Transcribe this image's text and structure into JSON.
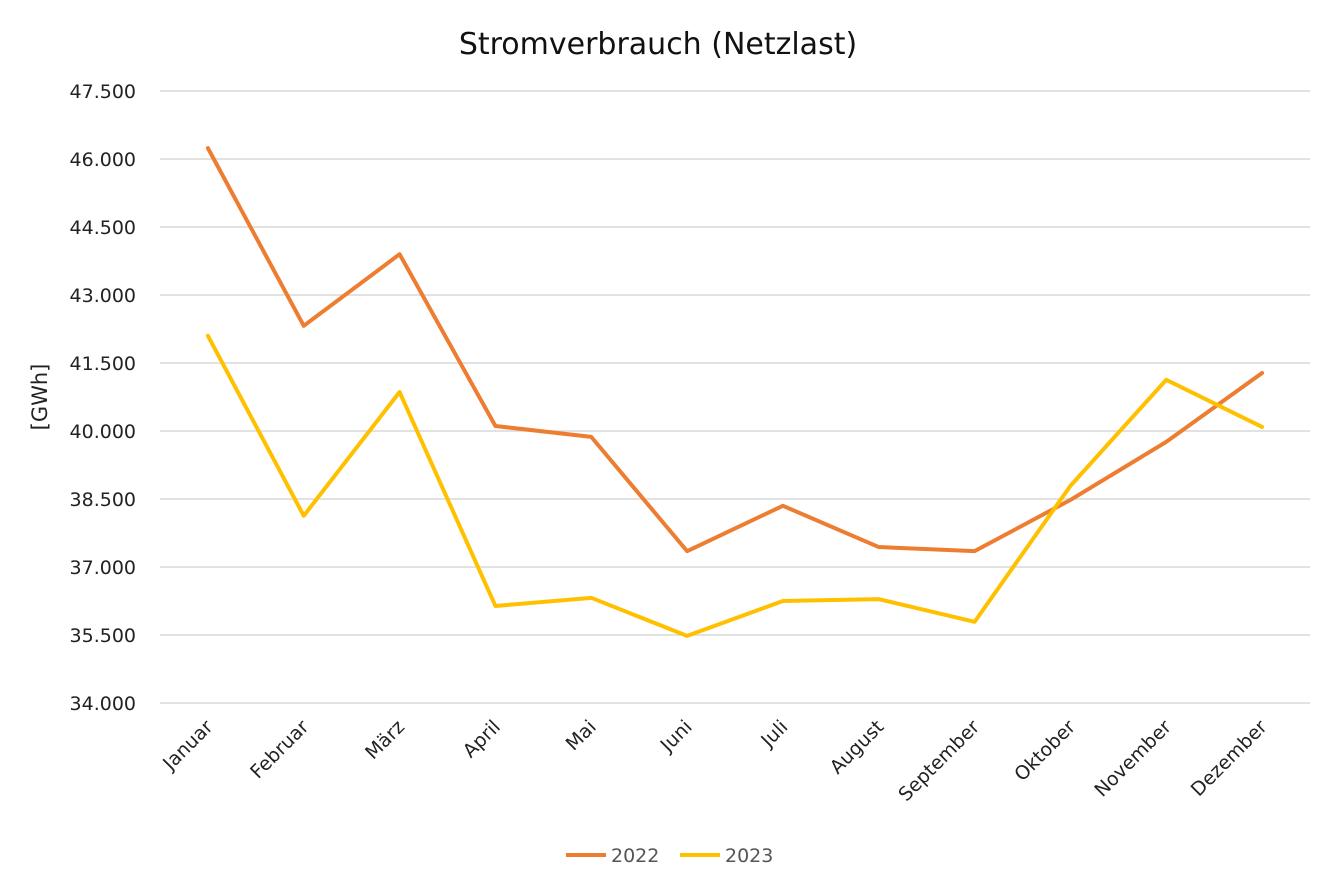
{
  "chart_data": {
    "type": "line",
    "title": "Stromverbrauch (Netzlast)",
    "xlabel": "",
    "ylabel": "[GWh]",
    "ylim": [
      34000,
      47500
    ],
    "yticks": [
      34000,
      35500,
      37000,
      38500,
      40000,
      41500,
      43000,
      44500,
      46000,
      47500
    ],
    "ytick_labels": [
      "34.000",
      "35.500",
      "37.000",
      "38.500",
      "40.000",
      "41.500",
      "43.000",
      "44.500",
      "46.000",
      "47.500"
    ],
    "grid": true,
    "legend_position": "bottom",
    "categories": [
      "Januar",
      "Februar",
      "März",
      "April",
      "Mai",
      "Juni",
      "Juli",
      "August",
      "September",
      "Oktober",
      "November",
      "Dezember"
    ],
    "series": [
      {
        "name": "2022",
        "color": "#ED7D31",
        "values": [
          46240,
          42320,
          43900,
          40110,
          39870,
          37350,
          38350,
          37440,
          37350,
          38480,
          39760,
          41280
        ]
      },
      {
        "name": "2023",
        "color": "#FFC000",
        "values": [
          42100,
          38130,
          40860,
          36140,
          36320,
          35480,
          36250,
          36290,
          35790,
          38790,
          41130,
          40090
        ]
      }
    ]
  }
}
